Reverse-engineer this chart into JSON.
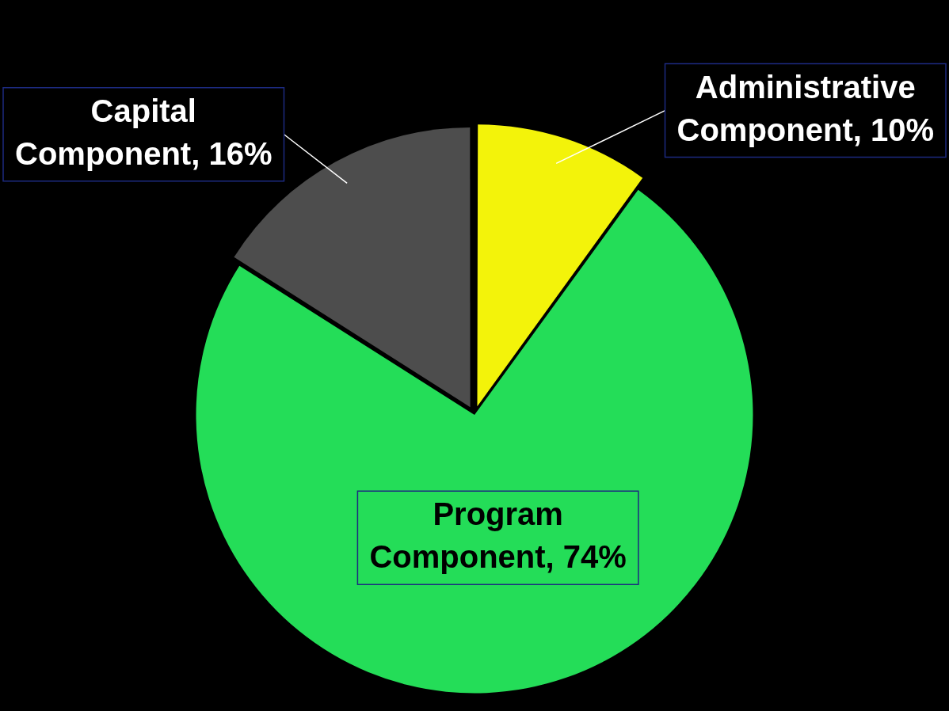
{
  "chart_data": {
    "type": "pie",
    "categories": [
      "Administrative Component",
      "Program Component",
      "Capital Component"
    ],
    "values": [
      10,
      74,
      16
    ],
    "value_labels": [
      "10%",
      "74%",
      "16%"
    ],
    "colors": [
      "#f3f30a",
      "#24dd58",
      "#4d4d4d"
    ],
    "legend": false
  }
}
